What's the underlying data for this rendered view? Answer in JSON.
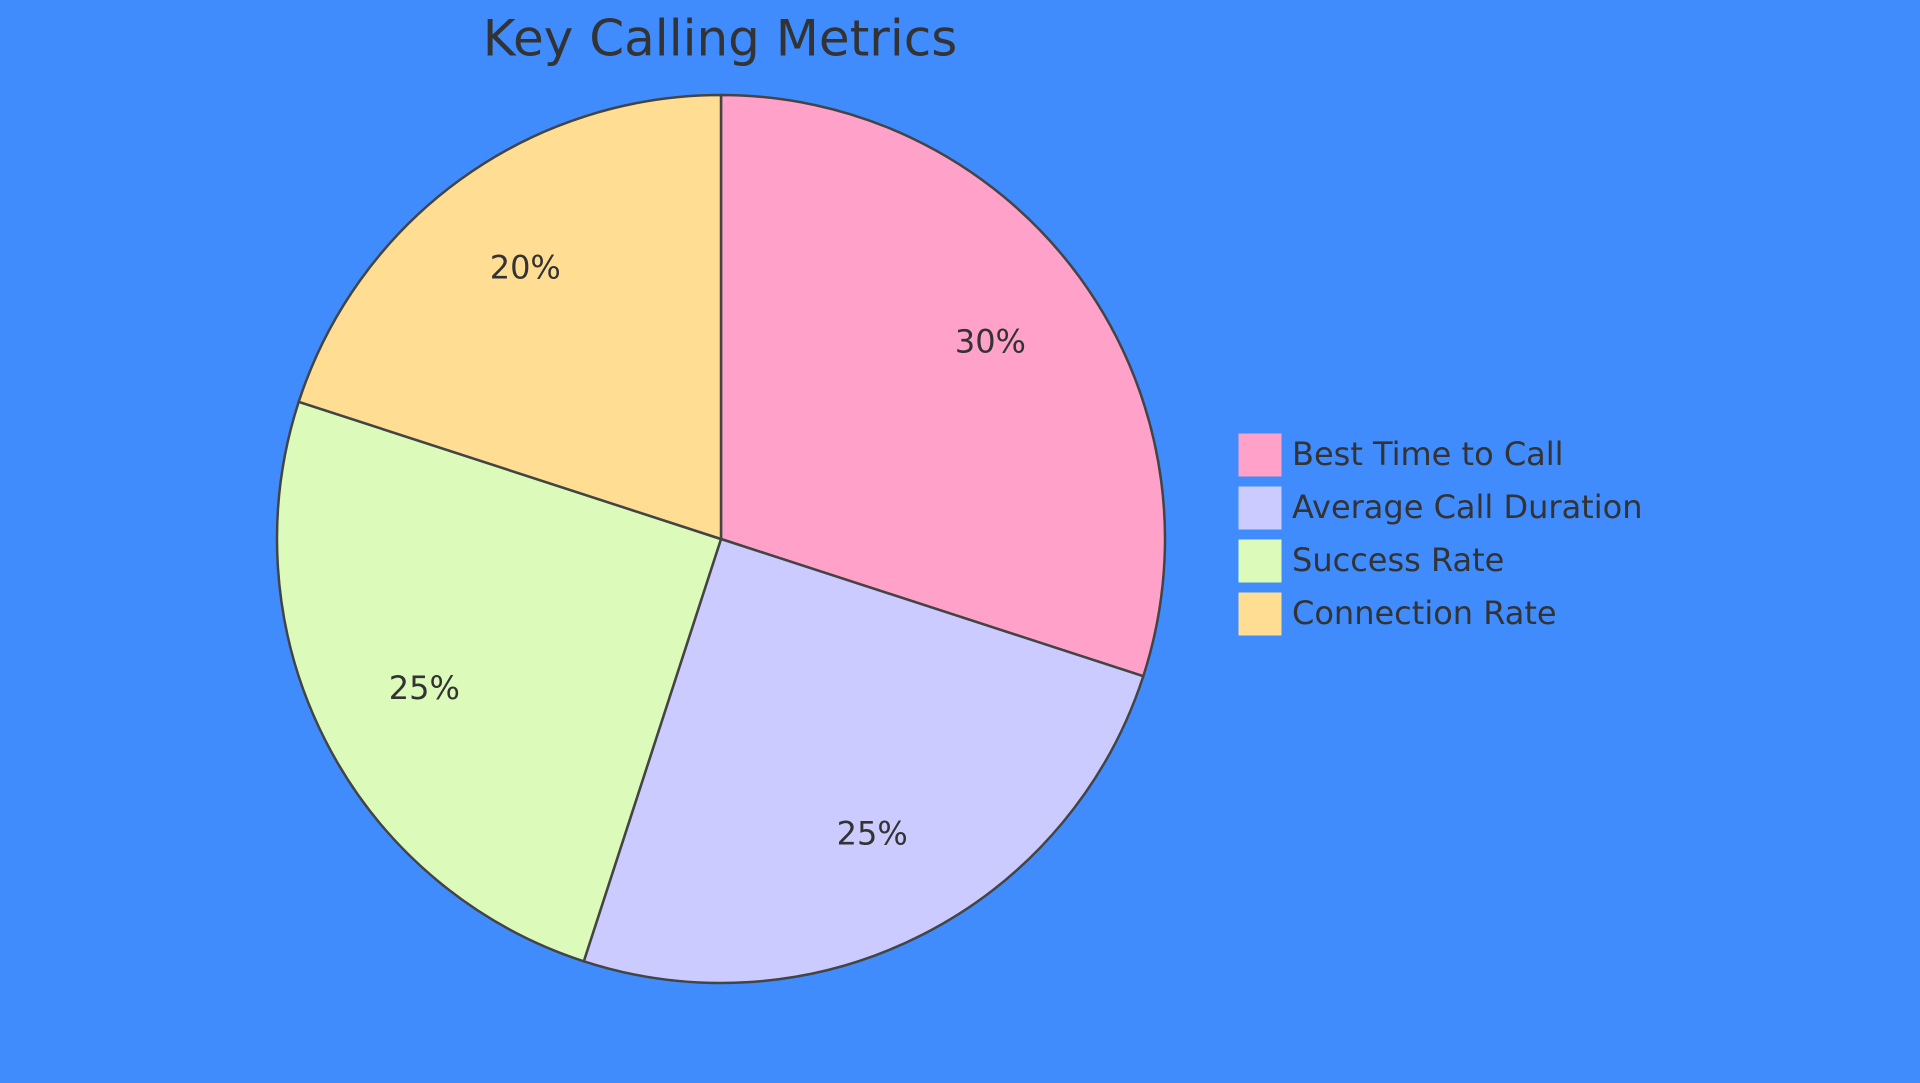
{
  "chart_data": {
    "type": "pie",
    "title": "Key Calling Metrics",
    "categories": [
      "Best Time to Call",
      "Average Call Duration",
      "Success Rate",
      "Connection Rate"
    ],
    "values": [
      30,
      25,
      25,
      20
    ],
    "value_labels": [
      "30%",
      "25%",
      "25%",
      "20%"
    ],
    "colors": [
      "#ffa1c9",
      "#cbcbff",
      "#dcfbbb",
      "#ffde94"
    ],
    "legend": "right"
  }
}
